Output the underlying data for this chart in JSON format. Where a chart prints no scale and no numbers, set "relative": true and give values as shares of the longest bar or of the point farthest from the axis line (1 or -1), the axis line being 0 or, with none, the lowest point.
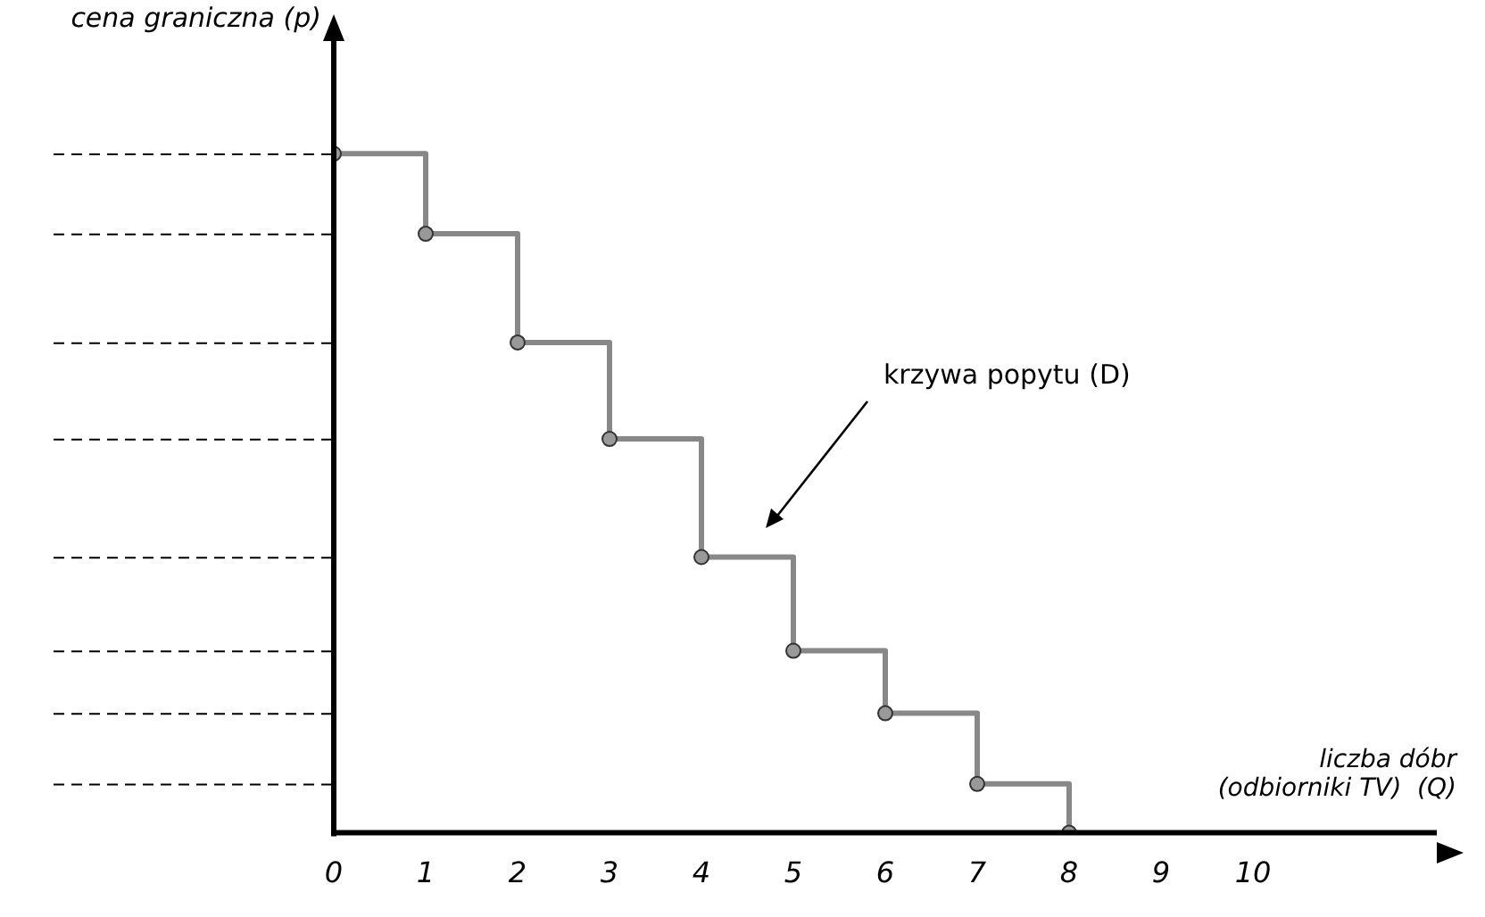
{
  "chart_data": {
    "type": "step",
    "relative": true,
    "ylabel": "cena graniczna (p)",
    "xlabel": "liczba dóbr\n(odbiorniki TV)  (Q)",
    "x": [
      0,
      1,
      2,
      3,
      4,
      5,
      6,
      7,
      8
    ],
    "series": [
      {
        "color": "#888888",
        "values": [
          1,
          0.882,
          0.722,
          0.58,
          0.406,
          0.268,
          0.176,
          0.072,
          0
        ]
      }
    ],
    "xlim": [
      0,
      12
    ],
    "xticks": [
      0,
      1,
      2,
      3,
      4,
      5,
      6,
      7,
      8,
      9,
      10
    ],
    "marker": "circle",
    "grid": false,
    "legend": false,
    "annotations": [
      "krzywa popytu (D)"
    ]
  }
}
